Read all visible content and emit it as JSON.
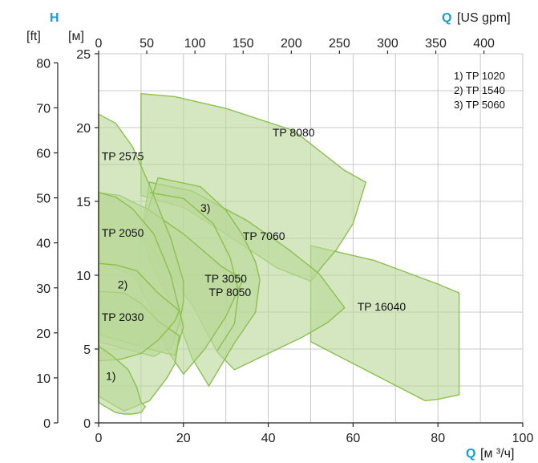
{
  "chart_data": {
    "type": "area",
    "x_axis_bottom": {
      "label_symbol": "Q",
      "label_unit": "[м ³/ч]",
      "range": [
        0,
        100
      ],
      "ticks": [
        "0",
        "20",
        "40",
        "60",
        "80",
        "100"
      ],
      "tick_values": [
        0,
        20,
        40,
        60,
        80,
        100
      ],
      "grid_step": 10
    },
    "x_axis_top": {
      "label_symbol": "Q",
      "label_unit": "[US gpm]",
      "ticks": [
        "0",
        "50",
        "100",
        "150",
        "200",
        "250",
        "300",
        "350",
        "400"
      ],
      "tick_values": [
        0,
        50,
        100,
        150,
        200,
        250,
        300,
        350,
        400
      ]
    },
    "y_axis_left_m": {
      "symbol": "H",
      "unit": "[м]",
      "range": [
        0,
        25
      ],
      "ticks": [
        "0",
        "5",
        "10",
        "15",
        "20",
        "25"
      ],
      "tick_values": [
        0,
        5,
        10,
        15,
        20,
        25
      ],
      "grid_step": 2.5
    },
    "y_axis_left_ft": {
      "unit": "[ft]",
      "ticks": [
        "0",
        "10",
        "20",
        "30",
        "40",
        "50",
        "60",
        "70",
        "80"
      ],
      "tick_values": [
        0,
        10,
        20,
        30,
        40,
        50,
        60,
        70,
        80
      ]
    },
    "legend": [
      "1) TP 1020",
      "2) TP 1540",
      "3) TP 5060"
    ],
    "fill_color": "#b9d99a",
    "stroke_color": "#8cc04f",
    "regions": [
      {
        "label": "TP 16040",
        "label_at": [
          61,
          7.6
        ],
        "points": [
          [
            50,
            12
          ],
          [
            65,
            11
          ],
          [
            80,
            9.4
          ],
          [
            85,
            8.8
          ],
          [
            85,
            1.9
          ],
          [
            80,
            1.6
          ],
          [
            77,
            1.5
          ],
          [
            50,
            5.5
          ]
        ]
      },
      {
        "label": "TP 8080",
        "label_at": [
          41,
          19.4
        ],
        "points": [
          [
            10,
            22.3
          ],
          [
            18,
            22.1
          ],
          [
            30,
            21.3
          ],
          [
            46,
            19.8
          ],
          [
            58,
            17.1
          ],
          [
            63,
            16.3
          ],
          [
            60,
            13.5
          ],
          [
            56,
            11.7
          ],
          [
            53,
            10.7
          ],
          [
            50,
            9.6
          ],
          [
            42,
            10.5
          ],
          [
            30,
            12.8
          ],
          [
            20,
            14.6
          ],
          [
            10,
            15.4
          ]
        ]
      },
      {
        "label": "TP 8050",
        "label_at": [
          26,
          8.6
        ],
        "points": [
          [
            12,
            16.3
          ],
          [
            22,
            15.7
          ],
          [
            35,
            13.7
          ],
          [
            45,
            11.7
          ],
          [
            52,
            10.1
          ],
          [
            58,
            7.8
          ],
          [
            54,
            6.8
          ],
          [
            48,
            5.8
          ],
          [
            32,
            3.6
          ],
          [
            28,
            4.8
          ],
          [
            22,
            8
          ],
          [
            14,
            11.2
          ],
          [
            10,
            12.8
          ]
        ]
      },
      {
        "label": "TP 7060",
        "label_at": [
          34,
          12.4
        ],
        "points": [
          [
            14,
            16.6
          ],
          [
            24,
            16
          ],
          [
            30,
            14.4
          ],
          [
            34,
            12.7
          ],
          [
            37,
            10.9
          ],
          [
            38,
            9.7
          ],
          [
            37,
            7.5
          ],
          [
            32,
            5.4
          ],
          [
            26,
            2.5
          ],
          [
            22,
            4.4
          ],
          [
            18,
            7.6
          ],
          [
            12,
            11
          ],
          [
            10,
            13
          ]
        ]
      },
      {
        "label": "TP 3050",
        "label_at": [
          25,
          9.5
        ],
        "points": [
          [
            0,
            15.6
          ],
          [
            5,
            15.4
          ],
          [
            12,
            14.4
          ],
          [
            20,
            12.8
          ],
          [
            29,
            10.6
          ],
          [
            34,
            9.7
          ],
          [
            30,
            7.2
          ],
          [
            25,
            5
          ],
          [
            20,
            3.3
          ],
          [
            16,
            5
          ],
          [
            12,
            8
          ],
          [
            8,
            10
          ],
          [
            0,
            11
          ]
        ]
      },
      {
        "label": "TP 2575",
        "label_at": [
          0.7,
          17.8
        ],
        "points": [
          [
            0,
            20.9
          ],
          [
            4,
            20.3
          ],
          [
            8,
            18.7
          ],
          [
            12,
            16.1
          ],
          [
            17,
            12.5
          ],
          [
            20,
            9.6
          ],
          [
            20,
            8.2
          ],
          [
            19,
            6.7
          ],
          [
            17,
            5
          ],
          [
            16,
            5
          ],
          [
            13,
            4.5
          ],
          [
            0,
            5.5
          ]
        ]
      },
      {
        "label": "TP 2050",
        "label_at": [
          0.7,
          12.6
        ],
        "points": [
          [
            0,
            15.6
          ],
          [
            4,
            15.3
          ],
          [
            8,
            14.5
          ],
          [
            13,
            12.8
          ],
          [
            17,
            10
          ],
          [
            20,
            6.5
          ],
          [
            18,
            4.6
          ],
          [
            16,
            4.7
          ],
          [
            12,
            5
          ],
          [
            0,
            6
          ]
        ]
      },
      {
        "label": "TP 2030",
        "label_at": [
          0.7,
          6.9
        ],
        "points": [
          [
            0,
            8.9
          ],
          [
            6,
            8.8
          ],
          [
            10,
            8.1
          ],
          [
            14,
            6.9
          ],
          [
            19,
            5.9
          ],
          [
            18,
            4
          ],
          [
            16,
            3
          ],
          [
            12,
            1.5
          ],
          [
            6,
            0.8
          ],
          [
            0,
            1.8
          ]
        ]
      },
      {
        "label": "2)",
        "label_at": [
          4.5,
          9.1
        ],
        "points": [
          [
            0,
            10.8
          ],
          [
            4,
            10.7
          ],
          [
            9,
            10.3
          ],
          [
            14,
            8.8
          ],
          [
            19,
            7.6
          ],
          [
            18,
            6.9
          ],
          [
            14,
            5.6
          ],
          [
            10,
            4.7
          ],
          [
            5,
            4.3
          ],
          [
            0,
            4.2
          ]
        ]
      },
      {
        "label": "1)",
        "label_at": [
          1.7,
          2.9
        ],
        "points": [
          [
            0,
            5.2
          ],
          [
            3,
            4.6
          ],
          [
            7,
            3.6
          ],
          [
            9,
            2.4
          ],
          [
            10,
            1.4
          ],
          [
            11,
            1.1
          ],
          [
            10,
            0.7
          ],
          [
            8,
            0.6
          ],
          [
            6,
            0.6
          ],
          [
            4,
            0.7
          ],
          [
            1,
            1.2
          ],
          [
            0,
            1.4
          ]
        ]
      }
    ],
    "extra_curves": [
      {
        "label": "3)",
        "label_at": [
          24,
          14.3
        ],
        "points": [
          [
            12,
            15.6
          ],
          [
            20,
            15.2
          ],
          [
            27,
            13.5
          ],
          [
            31,
            11.2
          ],
          [
            33,
            8.9
          ],
          [
            32,
            6.7
          ],
          [
            28,
            4.9
          ]
        ]
      }
    ]
  }
}
